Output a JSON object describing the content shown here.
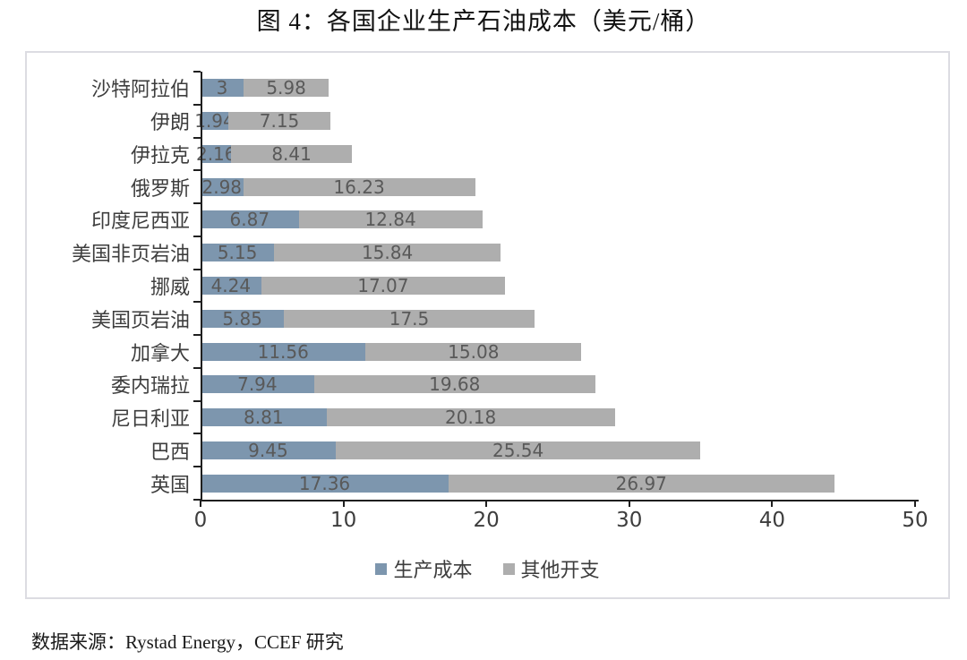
{
  "title": "图 4：各国企业生产石油成本（美元/桶）",
  "source": "数据来源：Rystad Energy，CCEF 研究",
  "colors": {
    "production_cost": "#7D96AE",
    "other_expense": "#AEAEAE",
    "value_label": "#595959",
    "axis_line": "#1f1f1f",
    "text": "#3d3d3d",
    "box_border": "#dcdce2"
  },
  "chart_data": {
    "type": "bar",
    "orientation": "horizontal",
    "stacked": true,
    "title": "图 4：各国企业生产石油成本（美元/桶）",
    "categories": [
      "沙特阿拉伯",
      "伊朗",
      "伊拉克",
      "俄罗斯",
      "印度尼西亚",
      "美国非页岩油",
      "挪威",
      "美国页岩油",
      "加拿大",
      "委内瑞拉",
      "尼日利亚",
      "巴西",
      "英国"
    ],
    "series": [
      {
        "name": "生产成本",
        "color": "#7D96AE",
        "values": [
          3,
          1.94,
          2.16,
          2.98,
          6.87,
          5.15,
          4.24,
          5.85,
          11.56,
          7.94,
          8.81,
          9.45,
          17.36
        ]
      },
      {
        "name": "其他开支",
        "color": "#AEAEAE",
        "values": [
          5.98,
          7.15,
          8.41,
          16.23,
          12.84,
          15.84,
          17.07,
          17.5,
          15.08,
          19.68,
          20.18,
          25.54,
          26.97
        ]
      }
    ],
    "xlabel": "",
    "ylabel": "",
    "xlim": [
      0,
      50
    ],
    "x_ticks": [
      0,
      10,
      20,
      30,
      40,
      50
    ],
    "grid": false,
    "legend_position": "bottom",
    "value_labels_shown": true
  }
}
